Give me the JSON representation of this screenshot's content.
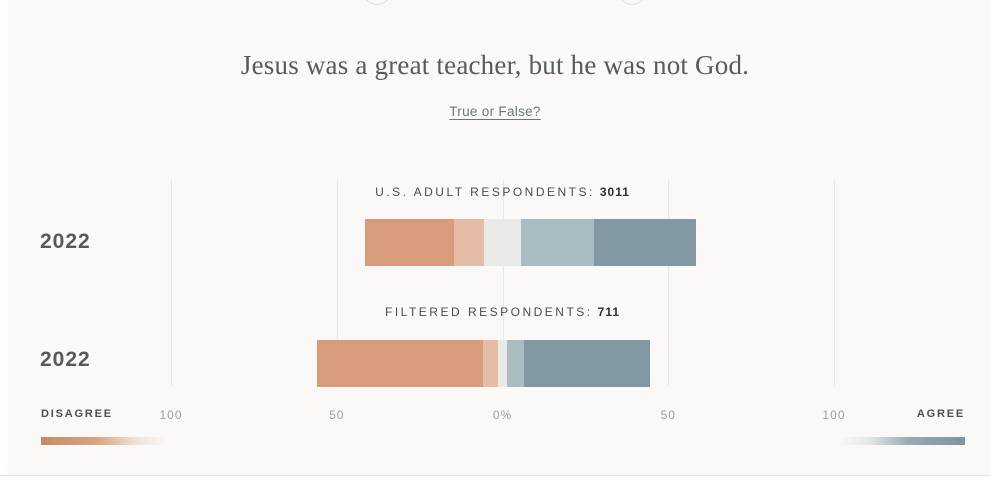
{
  "page": {
    "background": "#faf9f7",
    "title": "Jesus was a great teacher, but he was not God.",
    "subtitle_link": "True or False?"
  },
  "chart_data": {
    "type": "bar",
    "subtype": "diverging-stacked-horizontal",
    "unit": "percent",
    "title": "Jesus was a great teacher, but he was not God.",
    "axis": {
      "tick_labels": [
        "100",
        "50",
        "0%",
        "50",
        "100"
      ],
      "tick_values": [
        -100,
        -50,
        0,
        50,
        100
      ],
      "range": [
        -100,
        100
      ],
      "left_label": "DISAGREE",
      "right_label": "AGREE",
      "gridlines": true
    },
    "legend_categories": [
      {
        "name": "strongly-disagree",
        "color": "#d69c7b"
      },
      {
        "name": "somewhat-disagree",
        "color": "#e5bca6"
      },
      {
        "name": "not-sure",
        "color": "#e9e9e7"
      },
      {
        "name": "somewhat-agree",
        "color": "#a9bcc1"
      },
      {
        "name": "strongly-agree",
        "color": "#8299a3"
      }
    ],
    "rows": [
      {
        "year": "2022",
        "group_label": "U.S. ADULT RESPONDENTS:",
        "group_count": "3011",
        "values": {
          "strongly_disagree": 27,
          "somewhat_disagree": 9,
          "not_sure": 11,
          "somewhat_agree": 22,
          "strongly_agree": 31
        }
      },
      {
        "year": "2022",
        "group_label": "FILTERED RESPONDENTS:",
        "group_count": "711",
        "values": {
          "strongly_disagree": 50,
          "somewhat_disagree": 4.5,
          "not_sure": 3,
          "somewhat_agree": 5,
          "strongly_agree": 38
        }
      }
    ],
    "gradient_legend": {
      "disagree_color": "#c78b64",
      "agree_color": "#7d95a0"
    }
  }
}
